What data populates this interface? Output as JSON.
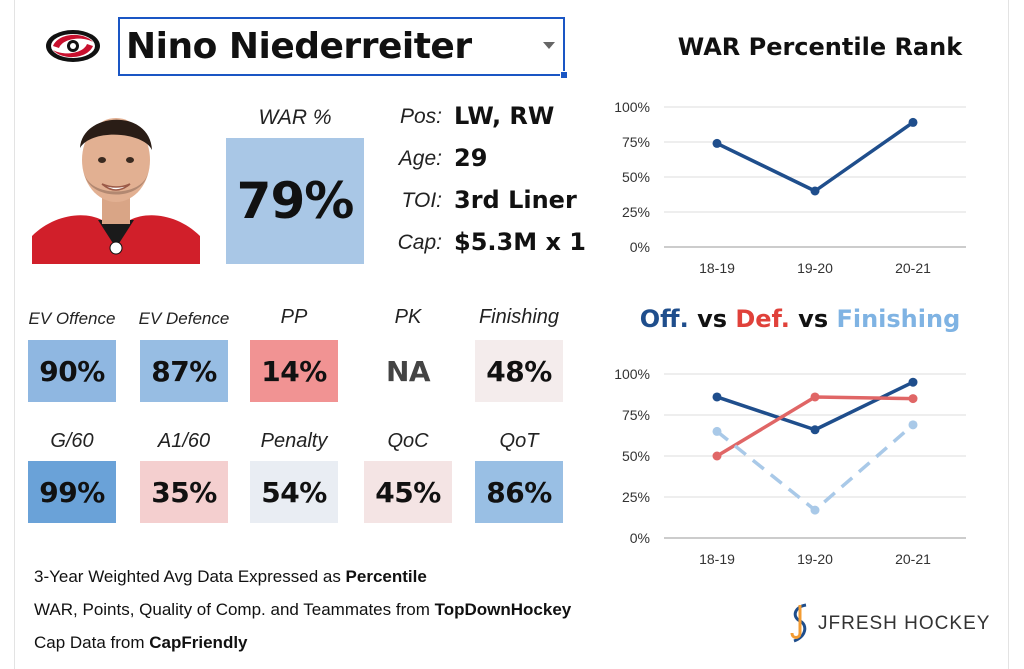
{
  "player": {
    "name": "Nino Niederreiter",
    "team_logo": "carolina-hurricanes-logo-icon",
    "photo": "player-headshot"
  },
  "war": {
    "label": "WAR %",
    "value": "79%",
    "color": "#a9c7e6"
  },
  "info": [
    {
      "key": "Pos:",
      "value": "LW, RW"
    },
    {
      "key": "Age:",
      "value": "29"
    },
    {
      "key": "TOI:",
      "value": "3rd Liner"
    },
    {
      "key": "Cap:",
      "value": "$5.3M x 1"
    }
  ],
  "stats_row1": [
    {
      "label": "EV Offence",
      "value": "90%",
      "color": "#8fb7e1"
    },
    {
      "label": "EV Defence",
      "value": "87%",
      "color": "#97bde3"
    },
    {
      "label": "PP",
      "value": "14%",
      "color": "#f19393"
    },
    {
      "label": "PK",
      "value": "NA",
      "color": "#ffffff"
    },
    {
      "label": "Finishing",
      "value": "48%",
      "color": "#f4ecec"
    }
  ],
  "stats_row2": [
    {
      "label": "G/60",
      "value": "99%",
      "color": "#6aa2d8"
    },
    {
      "label": "A1/60",
      "value": "35%",
      "color": "#f4cfcf"
    },
    {
      "label": "Penalty",
      "value": "54%",
      "color": "#e9edf3"
    },
    {
      "label": "QoC",
      "value": "45%",
      "color": "#f4e4e4"
    },
    {
      "label": "QoT",
      "value": "86%",
      "color": "#99bfe4"
    }
  ],
  "footer": {
    "line1_pre": "3-Year Weighted Avg Data Expressed as ",
    "line1_bold": "Percentile",
    "line2_pre": "WAR, Points, Quality of Comp. and Teammates from ",
    "line2_bold": "TopDownHockey",
    "line3_pre": "Cap Data from ",
    "line3_bold": "CapFriendly"
  },
  "brand": {
    "text": "JFRESH HOCKEY"
  },
  "chart_data": [
    {
      "type": "line",
      "title": "WAR Percentile Rank",
      "categories": [
        "18-19",
        "19-20",
        "20-21"
      ],
      "yticks": [
        "0%",
        "25%",
        "50%",
        "75%",
        "100%"
      ],
      "ylim": [
        0,
        100
      ],
      "series": [
        {
          "values": [
            74,
            40,
            89
          ],
          "color": "#1f4e8c",
          "dash": false
        }
      ]
    },
    {
      "type": "line",
      "title_parts": [
        {
          "text": "Off.",
          "color": "#1f4e8c"
        },
        {
          "text": " vs ",
          "color": "#111111"
        },
        {
          "text": "Def.",
          "color": "#e0413a"
        },
        {
          "text": " vs ",
          "color": "#111111"
        },
        {
          "text": "Finishing",
          "color": "#7fb3e3"
        }
      ],
      "categories": [
        "18-19",
        "19-20",
        "20-21"
      ],
      "yticks": [
        "0%",
        "25%",
        "50%",
        "75%",
        "100%"
      ],
      "ylim": [
        0,
        100
      ],
      "series": [
        {
          "values": [
            86,
            66,
            95
          ],
          "color": "#1f4e8c",
          "dash": false
        },
        {
          "values": [
            50,
            86,
            85
          ],
          "color": "#e06666",
          "dash": false
        },
        {
          "values": [
            65,
            17,
            69
          ],
          "color": "#a9c9e8",
          "dash": true
        }
      ]
    }
  ]
}
